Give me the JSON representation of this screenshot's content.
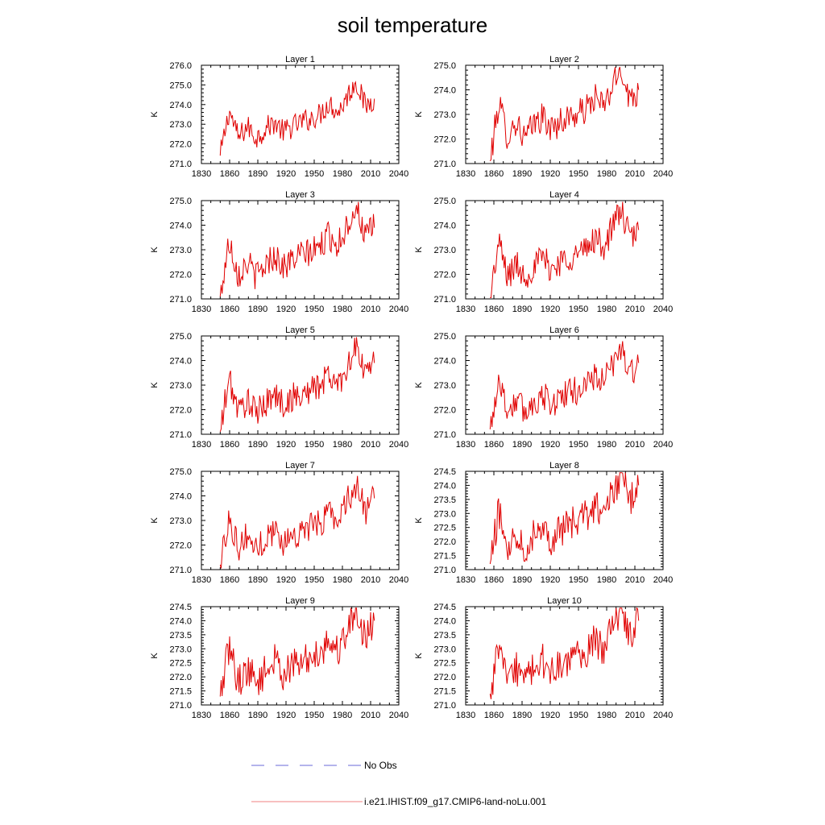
{
  "figure": {
    "title": "soil temperature",
    "legend": [
      {
        "label": "No Obs",
        "color": "#6a6ad8",
        "style": "dashed"
      },
      {
        "label": "i.e21.IHIST.f09_g17.CMIP6-land-noLu.001",
        "color": "#f08080",
        "style": "solid"
      }
    ]
  },
  "chart_data": [
    {
      "type": "line",
      "title": "Layer 1",
      "ylabel": "K",
      "xlim": [
        1830,
        2040
      ],
      "ylim": [
        271.0,
        276.0
      ],
      "xticks": [
        "1830",
        "1860",
        "1890",
        "1920",
        "1950",
        "1980",
        "2010",
        "2040"
      ],
      "yticks": [
        "271.0",
        "272.0",
        "273.0",
        "274.0",
        "275.0",
        "276.0"
      ],
      "series": [
        {
          "color": "#e00000",
          "x_start": 1850,
          "x_end": 2014,
          "anchors": [
            271.4,
            273.7,
            272.3,
            272.9,
            272.3,
            272.8,
            273.1,
            272.6,
            272.9,
            273.1,
            273.3,
            273.5,
            274.1,
            273.6,
            274.4,
            275.2,
            273.9,
            274.3
          ]
        }
      ]
    },
    {
      "type": "line",
      "title": "Layer 2",
      "ylabel": "K",
      "xlim": [
        1830,
        2040
      ],
      "ylim": [
        271.0,
        275.0
      ],
      "xticks": [
        "1830",
        "1860",
        "1890",
        "1920",
        "1950",
        "1980",
        "2010",
        "2040"
      ],
      "yticks": [
        "271.0",
        "272.0",
        "273.0",
        "274.0",
        "275.0"
      ],
      "series": [
        {
          "color": "#e00000",
          "x_start": 1856,
          "x_end": 2014,
          "anchors": [
            271.1,
            273.5,
            272.1,
            272.7,
            272.0,
            272.6,
            272.9,
            272.4,
            272.7,
            272.9,
            273.0,
            273.2,
            273.7,
            273.3,
            274.1,
            274.9,
            273.6,
            274.0
          ]
        }
      ]
    },
    {
      "type": "line",
      "title": "Layer 3",
      "ylabel": "K",
      "xlim": [
        1830,
        2040
      ],
      "ylim": [
        271.0,
        275.0
      ],
      "xticks": [
        "1830",
        "1860",
        "1890",
        "1920",
        "1950",
        "1980",
        "2010",
        "2040"
      ],
      "yticks": [
        "271.0",
        "272.0",
        "273.0",
        "274.0",
        "275.0"
      ],
      "series": [
        {
          "color": "#e00000",
          "x_start": 1850,
          "x_end": 2014,
          "anchors": [
            271.1,
            273.4,
            272.0,
            272.5,
            271.9,
            272.4,
            272.8,
            272.3,
            272.6,
            272.8,
            272.9,
            273.1,
            273.6,
            273.2,
            274.0,
            274.8,
            273.5,
            273.9
          ]
        }
      ]
    },
    {
      "type": "line",
      "title": "Layer 4",
      "ylabel": "K",
      "xlim": [
        1830,
        2040
      ],
      "ylim": [
        271.0,
        275.0
      ],
      "xticks": [
        "1830",
        "1860",
        "1890",
        "1920",
        "1950",
        "1980",
        "2010",
        "2040"
      ],
      "yticks": [
        "271.0",
        "272.0",
        "273.0",
        "274.0",
        "275.0"
      ],
      "series": [
        {
          "color": "#e00000",
          "x_start": 1856,
          "x_end": 2014,
          "anchors": [
            271.0,
            273.3,
            271.9,
            272.4,
            271.9,
            272.3,
            272.7,
            272.2,
            272.5,
            272.7,
            272.8,
            273.0,
            273.5,
            273.1,
            273.9,
            274.7,
            273.4,
            273.8
          ]
        }
      ]
    },
    {
      "type": "line",
      "title": "Layer 5",
      "ylabel": "K",
      "xlim": [
        1830,
        2040
      ],
      "ylim": [
        271.0,
        275.0
      ],
      "xticks": [
        "1830",
        "1860",
        "1890",
        "1920",
        "1950",
        "1980",
        "2010",
        "2040"
      ],
      "yticks": [
        "271.0",
        "272.0",
        "273.0",
        "274.0",
        "275.0"
      ],
      "series": [
        {
          "color": "#e00000",
          "x_start": 1850,
          "x_end": 2014,
          "anchors": [
            271.1,
            273.3,
            271.9,
            272.4,
            271.8,
            272.3,
            272.6,
            272.2,
            272.5,
            272.6,
            272.8,
            273.0,
            273.4,
            273.0,
            273.8,
            274.6,
            273.4,
            273.9
          ]
        }
      ]
    },
    {
      "type": "line",
      "title": "Layer 6",
      "ylabel": "K",
      "xlim": [
        1830,
        2040
      ],
      "ylim": [
        271.0,
        275.0
      ],
      "xticks": [
        "1830",
        "1860",
        "1890",
        "1920",
        "1950",
        "1980",
        "2010",
        "2040"
      ],
      "yticks": [
        "271.0",
        "272.0",
        "273.0",
        "274.0",
        "275.0"
      ],
      "series": [
        {
          "color": "#e00000",
          "x_start": 1856,
          "x_end": 2014,
          "anchors": [
            271.2,
            273.3,
            271.9,
            272.4,
            271.9,
            272.3,
            272.6,
            272.2,
            272.5,
            272.7,
            272.8,
            273.0,
            273.4,
            273.1,
            273.8,
            274.6,
            273.4,
            273.9
          ]
        }
      ]
    },
    {
      "type": "line",
      "title": "Layer 7",
      "ylabel": "K",
      "xlim": [
        1830,
        2040
      ],
      "ylim": [
        271.0,
        275.0
      ],
      "xticks": [
        "1830",
        "1860",
        "1890",
        "1920",
        "1950",
        "1980",
        "2010",
        "2040"
      ],
      "yticks": [
        "271.0",
        "272.0",
        "273.0",
        "274.0",
        "275.0"
      ],
      "series": [
        {
          "color": "#e00000",
          "x_start": 1850,
          "x_end": 2014,
          "anchors": [
            271.2,
            273.2,
            271.9,
            272.4,
            271.8,
            272.3,
            272.6,
            272.1,
            272.4,
            272.6,
            272.7,
            272.9,
            273.4,
            273.0,
            273.8,
            274.5,
            273.4,
            273.9
          ]
        }
      ]
    },
    {
      "type": "line",
      "title": "Layer 8",
      "ylabel": "K",
      "xlim": [
        1830,
        2040
      ],
      "ylim": [
        271.0,
        274.5
      ],
      "xticks": [
        "1830",
        "1860",
        "1890",
        "1920",
        "1950",
        "1980",
        "2010",
        "2040"
      ],
      "yticks": [
        "271.0",
        "271.5",
        "272.0",
        "272.5",
        "273.0",
        "273.5",
        "274.0",
        "274.5"
      ],
      "series": [
        {
          "color": "#e00000",
          "x_start": 1856,
          "x_end": 2014,
          "anchors": [
            271.2,
            273.1,
            271.8,
            272.3,
            271.8,
            272.3,
            272.6,
            272.1,
            272.4,
            272.6,
            272.7,
            272.9,
            273.3,
            273.0,
            273.7,
            274.4,
            273.4,
            274.0
          ]
        }
      ]
    },
    {
      "type": "line",
      "title": "Layer 9",
      "ylabel": "K",
      "xlim": [
        1830,
        2040
      ],
      "ylim": [
        271.0,
        274.5
      ],
      "xticks": [
        "1830",
        "1860",
        "1890",
        "1920",
        "1950",
        "1980",
        "2010",
        "2040"
      ],
      "yticks": [
        "271.0",
        "271.5",
        "272.0",
        "272.5",
        "273.0",
        "273.5",
        "274.0",
        "274.5"
      ],
      "series": [
        {
          "color": "#e00000",
          "x_start": 1850,
          "x_end": 2014,
          "anchors": [
            271.3,
            273.1,
            271.8,
            272.3,
            271.8,
            272.2,
            272.6,
            272.1,
            272.4,
            272.5,
            272.7,
            272.9,
            273.3,
            272.9,
            273.7,
            274.4,
            273.4,
            274.0
          ]
        }
      ]
    },
    {
      "type": "line",
      "title": "Layer 10",
      "ylabel": "K",
      "xlim": [
        1830,
        2040
      ],
      "ylim": [
        271.0,
        274.5
      ],
      "xticks": [
        "1830",
        "1860",
        "1890",
        "1920",
        "1950",
        "1980",
        "2010",
        "2040"
      ],
      "yticks": [
        "271.0",
        "271.5",
        "272.0",
        "272.5",
        "273.0",
        "273.5",
        "274.0",
        "274.5"
      ],
      "series": [
        {
          "color": "#e00000",
          "x_start": 1856,
          "x_end": 2014,
          "anchors": [
            271.4,
            273.1,
            271.8,
            272.3,
            271.8,
            272.3,
            272.6,
            272.1,
            272.4,
            272.5,
            272.7,
            272.9,
            273.3,
            273.0,
            273.7,
            274.4,
            273.5,
            274.0
          ]
        }
      ]
    }
  ]
}
